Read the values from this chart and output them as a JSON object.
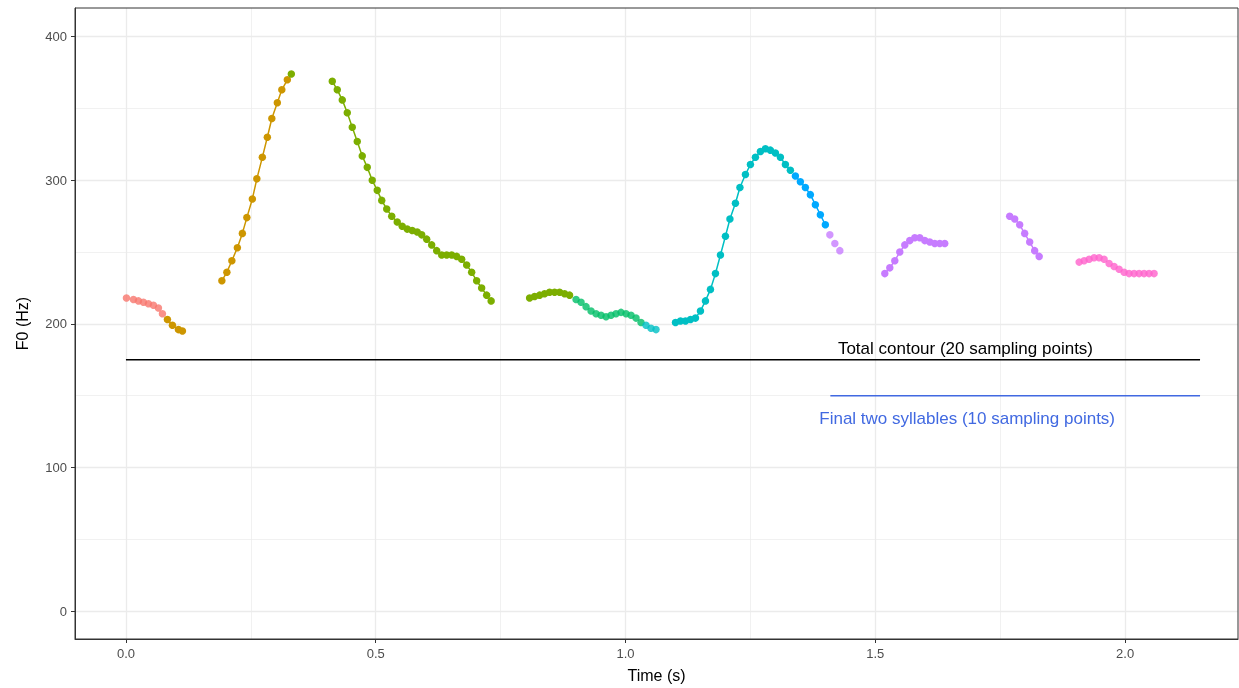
{
  "chart_data": {
    "type": "line",
    "xlabel": "Time (s)",
    "ylabel": "F0 (Hz)",
    "xlim": [
      -0.102,
      2.226
    ],
    "xticks": [
      {
        "value": 0,
        "label": "0.0"
      },
      0.5,
      {
        "value": 1,
        "label": "1.0"
      },
      1.5,
      {
        "value": 2,
        "label": "2.0"
      }
    ],
    "ylim": [
      -19.5,
      420
    ],
    "yticks": [
      0,
      100,
      200,
      300,
      400
    ],
    "grid": true,
    "marker": "circle",
    "series": [
      {
        "type": "scatter",
        "color": "#f8766d",
        "x": [
          0.001,
          0.015,
          0.025,
          0.035,
          0.045,
          0.055,
          0.065,
          0.073
        ],
        "values": [
          218,
          217,
          216,
          215,
          214,
          213,
          211,
          207
        ]
      },
      {
        "color": "#cd9600",
        "x": [
          0.083,
          0.093,
          0.105,
          0.113,
          0.15,
          0.192,
          0.202,
          0.212,
          0.223,
          0.233,
          0.242,
          0.253,
          0.262,
          0.273,
          0.283,
          0.292,
          0.303,
          0.312,
          0.323
        ],
        "values": [
          203,
          199,
          196,
          195,
          null,
          230,
          236,
          244,
          253,
          263,
          274,
          287,
          301,
          316,
          330,
          343,
          354,
          363,
          370
        ]
      },
      {
        "color": "#7cae00",
        "x": [
          0.331,
          0.37,
          0.413,
          0.423,
          0.433,
          0.443,
          0.453,
          0.463,
          0.473,
          0.483,
          0.493,
          0.503,
          0.512,
          0.522,
          0.532,
          0.543,
          0.553,
          0.563,
          0.573,
          0.583,
          0.592,
          0.602,
          0.612,
          0.622,
          0.632,
          0.642,
          0.652,
          0.662,
          0.672,
          0.682,
          0.692,
          0.702,
          0.712,
          0.722,
          0.731,
          0.77,
          0.808,
          0.818,
          0.828,
          0.838,
          0.848,
          0.858,
          0.868,
          0.878,
          0.888
        ],
        "values": [
          374,
          null,
          369,
          363,
          356,
          347,
          337,
          327,
          317,
          309,
          300,
          293,
          286,
          280,
          275,
          271,
          268,
          266,
          265,
          264,
          262,
          259,
          255,
          251,
          248,
          248,
          248,
          247,
          245,
          241,
          236,
          230,
          225,
          220,
          216,
          null,
          218,
          219,
          220,
          221,
          222,
          222,
          222,
          221,
          220
        ]
      },
      {
        "type": "scatter",
        "color": "#00be67",
        "x": [
          0.901,
          0.911,
          0.921,
          0.931,
          0.941,
          0.951,
          0.961,
          0.971,
          0.981,
          0.991,
          1.001,
          1.011,
          1.021,
          1.031
        ],
        "values": [
          217,
          215,
          212,
          209,
          207,
          206,
          205,
          206,
          207,
          208,
          207,
          206,
          204,
          201
        ]
      },
      {
        "type": "scatter",
        "color": "#00bfc4",
        "x": [
          1.041,
          1.051,
          1.061
        ],
        "values": [
          199,
          197,
          196
        ]
      },
      {
        "color": "#00bfc4",
        "x": [
          1.1,
          1.11,
          1.12,
          1.13,
          1.14,
          1.15,
          1.16,
          1.17,
          1.18,
          1.19,
          1.2,
          1.209,
          1.22,
          1.229,
          1.24,
          1.25,
          1.26,
          1.27,
          1.28,
          1.29,
          1.3,
          1.31,
          1.32,
          1.33
        ],
        "values": [
          201,
          202,
          202,
          203,
          204,
          209,
          216,
          224,
          235,
          248,
          261,
          273,
          284,
          295,
          304,
          311,
          316,
          320,
          322,
          321,
          319,
          316,
          311,
          307
        ]
      },
      {
        "color": "#00a9ff",
        "x": [
          1.34,
          1.35,
          1.36,
          1.37,
          1.38,
          1.39,
          1.4
        ],
        "values": [
          303,
          299,
          295,
          290,
          283,
          276,
          269
        ]
      },
      {
        "type": "scatter",
        "color": "#c77cff",
        "x": [
          1.409,
          1.419,
          1.429
        ],
        "values": [
          262,
          256,
          251
        ]
      },
      {
        "color": "#c77cff",
        "x": [
          1.519,
          1.529,
          1.539,
          1.549,
          1.559,
          1.569,
          1.579,
          1.589,
          1.599,
          1.609,
          1.619,
          1.629,
          1.639,
          1.7,
          1.769,
          1.779,
          1.789,
          1.799,
          1.809,
          1.819,
          1.828
        ],
        "values": [
          235,
          239,
          244,
          250,
          255,
          258,
          260,
          260,
          258,
          257,
          256,
          256,
          256,
          null,
          275,
          273,
          269,
          263,
          257,
          251,
          247
        ]
      },
      {
        "type": "scatter",
        "color": "#ff61cc",
        "x": [
          1.908,
          1.918,
          1.928,
          1.938,
          1.948,
          1.958,
          1.968,
          1.978,
          1.988,
          1.998,
          2.008,
          2.018,
          2.028,
          2.038,
          2.048,
          2.058
        ],
        "values": [
          243,
          244,
          245,
          246,
          246,
          245,
          242,
          240,
          238,
          236,
          235,
          235,
          235,
          235,
          235,
          235
        ]
      },
      {
        "name": "Total contour (20 sampling points)",
        "color": "#000000",
        "marker": "none",
        "x": [
          0,
          2.15
        ],
        "values": [
          175,
          175
        ]
      },
      {
        "name": "Final two syllables (10 sampling points)",
        "color": "#4169e1",
        "marker": "none",
        "x": [
          1.41,
          2.15
        ],
        "values": [
          150,
          150
        ]
      }
    ]
  }
}
